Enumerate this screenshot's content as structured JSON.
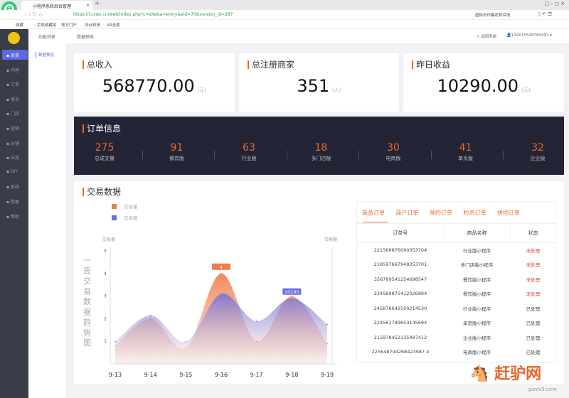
{
  "browser": {
    "tab_title": "小程序系统后台管理",
    "url": "https://l.cswz.cn/web/index.php?c=site&a=entry&eid=70&version_id=287",
    "search": "虚拟币诈骗花样百出",
    "bookmarks": [
      "收藏",
      "手机收藏夹",
      "地方门户",
      "闪云科技",
      "VR全景"
    ]
  },
  "sidebar": {
    "items": [
      {
        "label": "总览",
        "active": true
      },
      {
        "label": "内容"
      },
      {
        "label": "订单"
      },
      {
        "label": "会员"
      },
      {
        "label": "门店"
      },
      {
        "label": "营销"
      },
      {
        "label": "分销"
      },
      {
        "label": "应用"
      },
      {
        "label": "DIY"
      },
      {
        "label": "系统"
      },
      {
        "label": "数据"
      },
      {
        "label": "帮助"
      }
    ]
  },
  "subnav": {
    "title": "功能列表",
    "item": "数据预览"
  },
  "header": {
    "breadcrumb": "数据预览",
    "back": "< 返回系统",
    "user": "134010508785491 ▾"
  },
  "cards": [
    {
      "title": "总收入",
      "value": "568770.00",
      "unit": "(元)"
    },
    {
      "title": "总注册商家",
      "value": "351",
      "unit": "(人)"
    },
    {
      "title": "昨日收益",
      "value": "10290.00",
      "unit": "(元)"
    }
  ],
  "orders": {
    "title": "订单信息",
    "stats": [
      {
        "n": "275",
        "l": "总成交量"
      },
      {
        "n": "91",
        "l": "餐饮版"
      },
      {
        "n": "63",
        "l": "行业版"
      },
      {
        "n": "18",
        "l": "多门店版"
      },
      {
        "n": "30",
        "l": "电商版"
      },
      {
        "n": "41",
        "l": "单页版"
      },
      {
        "n": "32",
        "l": "企业版"
      }
    ]
  },
  "trade": {
    "title": "交易数据",
    "vertical_title": "一周交易数据趋势图"
  },
  "chart_data": {
    "type": "area",
    "smooth": true,
    "categories": [
      "9-13",
      "9-14",
      "9-15",
      "9-16",
      "9-17",
      "9-18",
      "9-19"
    ],
    "ylabel_left": "交易量",
    "ylabel_right": "交易额",
    "ylim_left": [
      0,
      5
    ],
    "yticks_left": [
      1,
      2,
      3,
      4,
      5
    ],
    "series": [
      {
        "name": "交易量",
        "axis": "left",
        "color": "#f07c4a",
        "values": [
          0.8,
          2,
          0.7,
          4,
          1,
          3,
          0.9
        ],
        "label_point": {
          "category": "9-16",
          "text": "4"
        }
      },
      {
        "name": "交易额",
        "axis": "right",
        "color": "#6a6ee0",
        "values": [
          3500,
          7600,
          3500,
          11000,
          6700,
          10290,
          6200
        ],
        "label_point": {
          "category": "9-18",
          "text": "10290"
        }
      }
    ],
    "ylim_right": [
      0,
      17740
    ],
    "legend": "top-left"
  },
  "order_table": {
    "tabs": [
      "商品订单",
      "商户订单",
      "预约订单",
      "秒杀订单",
      "拼团订单"
    ],
    "columns": [
      "订单号",
      "商品名称",
      "状态"
    ],
    "rows": [
      [
        "221568876090353704",
        "行业版小程序",
        "未处理"
      ],
      [
        "218597667949353701",
        "多门店版小程序",
        "未处理"
      ],
      [
        "356789541254698547",
        "餐饮版小程序",
        "未处理"
      ],
      [
        "224569875412026894",
        "餐饮版小程序",
        "未处理"
      ],
      [
        "245876642500214530",
        "行业版小程序",
        "已处理"
      ],
      [
        "224561789653145694",
        "单页版小程序",
        "已处理"
      ],
      [
        "215978452135497412",
        "企业版小程序",
        "已处理"
      ],
      [
        "225648794268423987 4",
        "电商版小程序",
        "已处理"
      ]
    ]
  },
  "watermark": {
    "text": "赶驴网",
    "url": "ganlv5.com"
  },
  "colors": {
    "accent": "#e8672c",
    "sidebar": "#3a3c48",
    "active": "#5b6ae0",
    "unprocessed": "#e0413a"
  }
}
